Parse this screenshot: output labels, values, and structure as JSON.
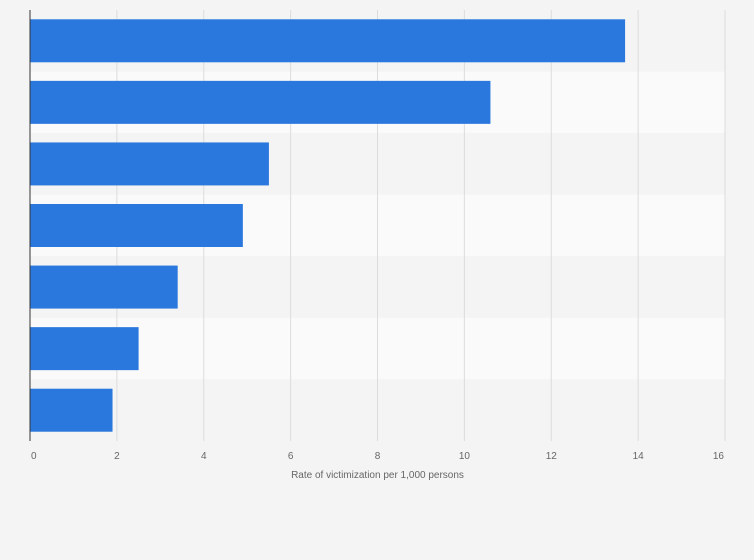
{
  "chart_data": {
    "type": "bar",
    "orientation": "horizontal",
    "title": "",
    "xlabel": "Rate of victimization per 1,000 persons",
    "ylabel": "",
    "categories": [
      "",
      "",
      "",
      "",
      "",
      "",
      ""
    ],
    "values": [
      13.7,
      10.6,
      5.5,
      4.9,
      3.4,
      2.5,
      1.9
    ],
    "xlim": [
      0,
      16
    ],
    "xticks": [
      0,
      2,
      4,
      6,
      8,
      10,
      12,
      14,
      16
    ],
    "xtick_labels": [
      "0",
      "2",
      "4",
      "6",
      "8",
      "10",
      "12",
      "14",
      "16"
    ],
    "grid": true,
    "legend": "none"
  },
  "colors": {
    "bar": "#2a78de",
    "grid": "#dcdcdc",
    "axis": "#333333",
    "band_light": "#fafafa",
    "band_dark": "#f4f4f4",
    "text": "#666666"
  }
}
